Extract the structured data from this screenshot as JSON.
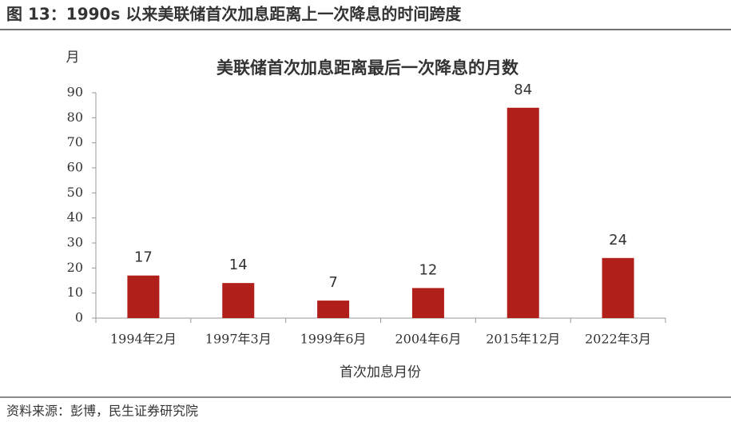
{
  "figure_title": "图 13：1990s 以来美联储首次加息距离上一次降息的时间跨度",
  "source": "资料来源：彭博，民生证券研究院",
  "chart_data": {
    "type": "bar",
    "title": "美联储首次加息距离最后一次降息的月数",
    "y_label": "月",
    "x_label": "首次加息月份",
    "categories": [
      "1994年2月",
      "1997年3月",
      "1999年6月",
      "2004年6月",
      "2015年12月",
      "2022年3月"
    ],
    "values": [
      17,
      14,
      7,
      12,
      84,
      24
    ],
    "color": "#b01f1a",
    "ylim": [
      0,
      90
    ],
    "yticks": [
      0,
      10,
      20,
      30,
      40,
      50,
      60,
      70,
      80,
      90
    ],
    "grid": false
  }
}
